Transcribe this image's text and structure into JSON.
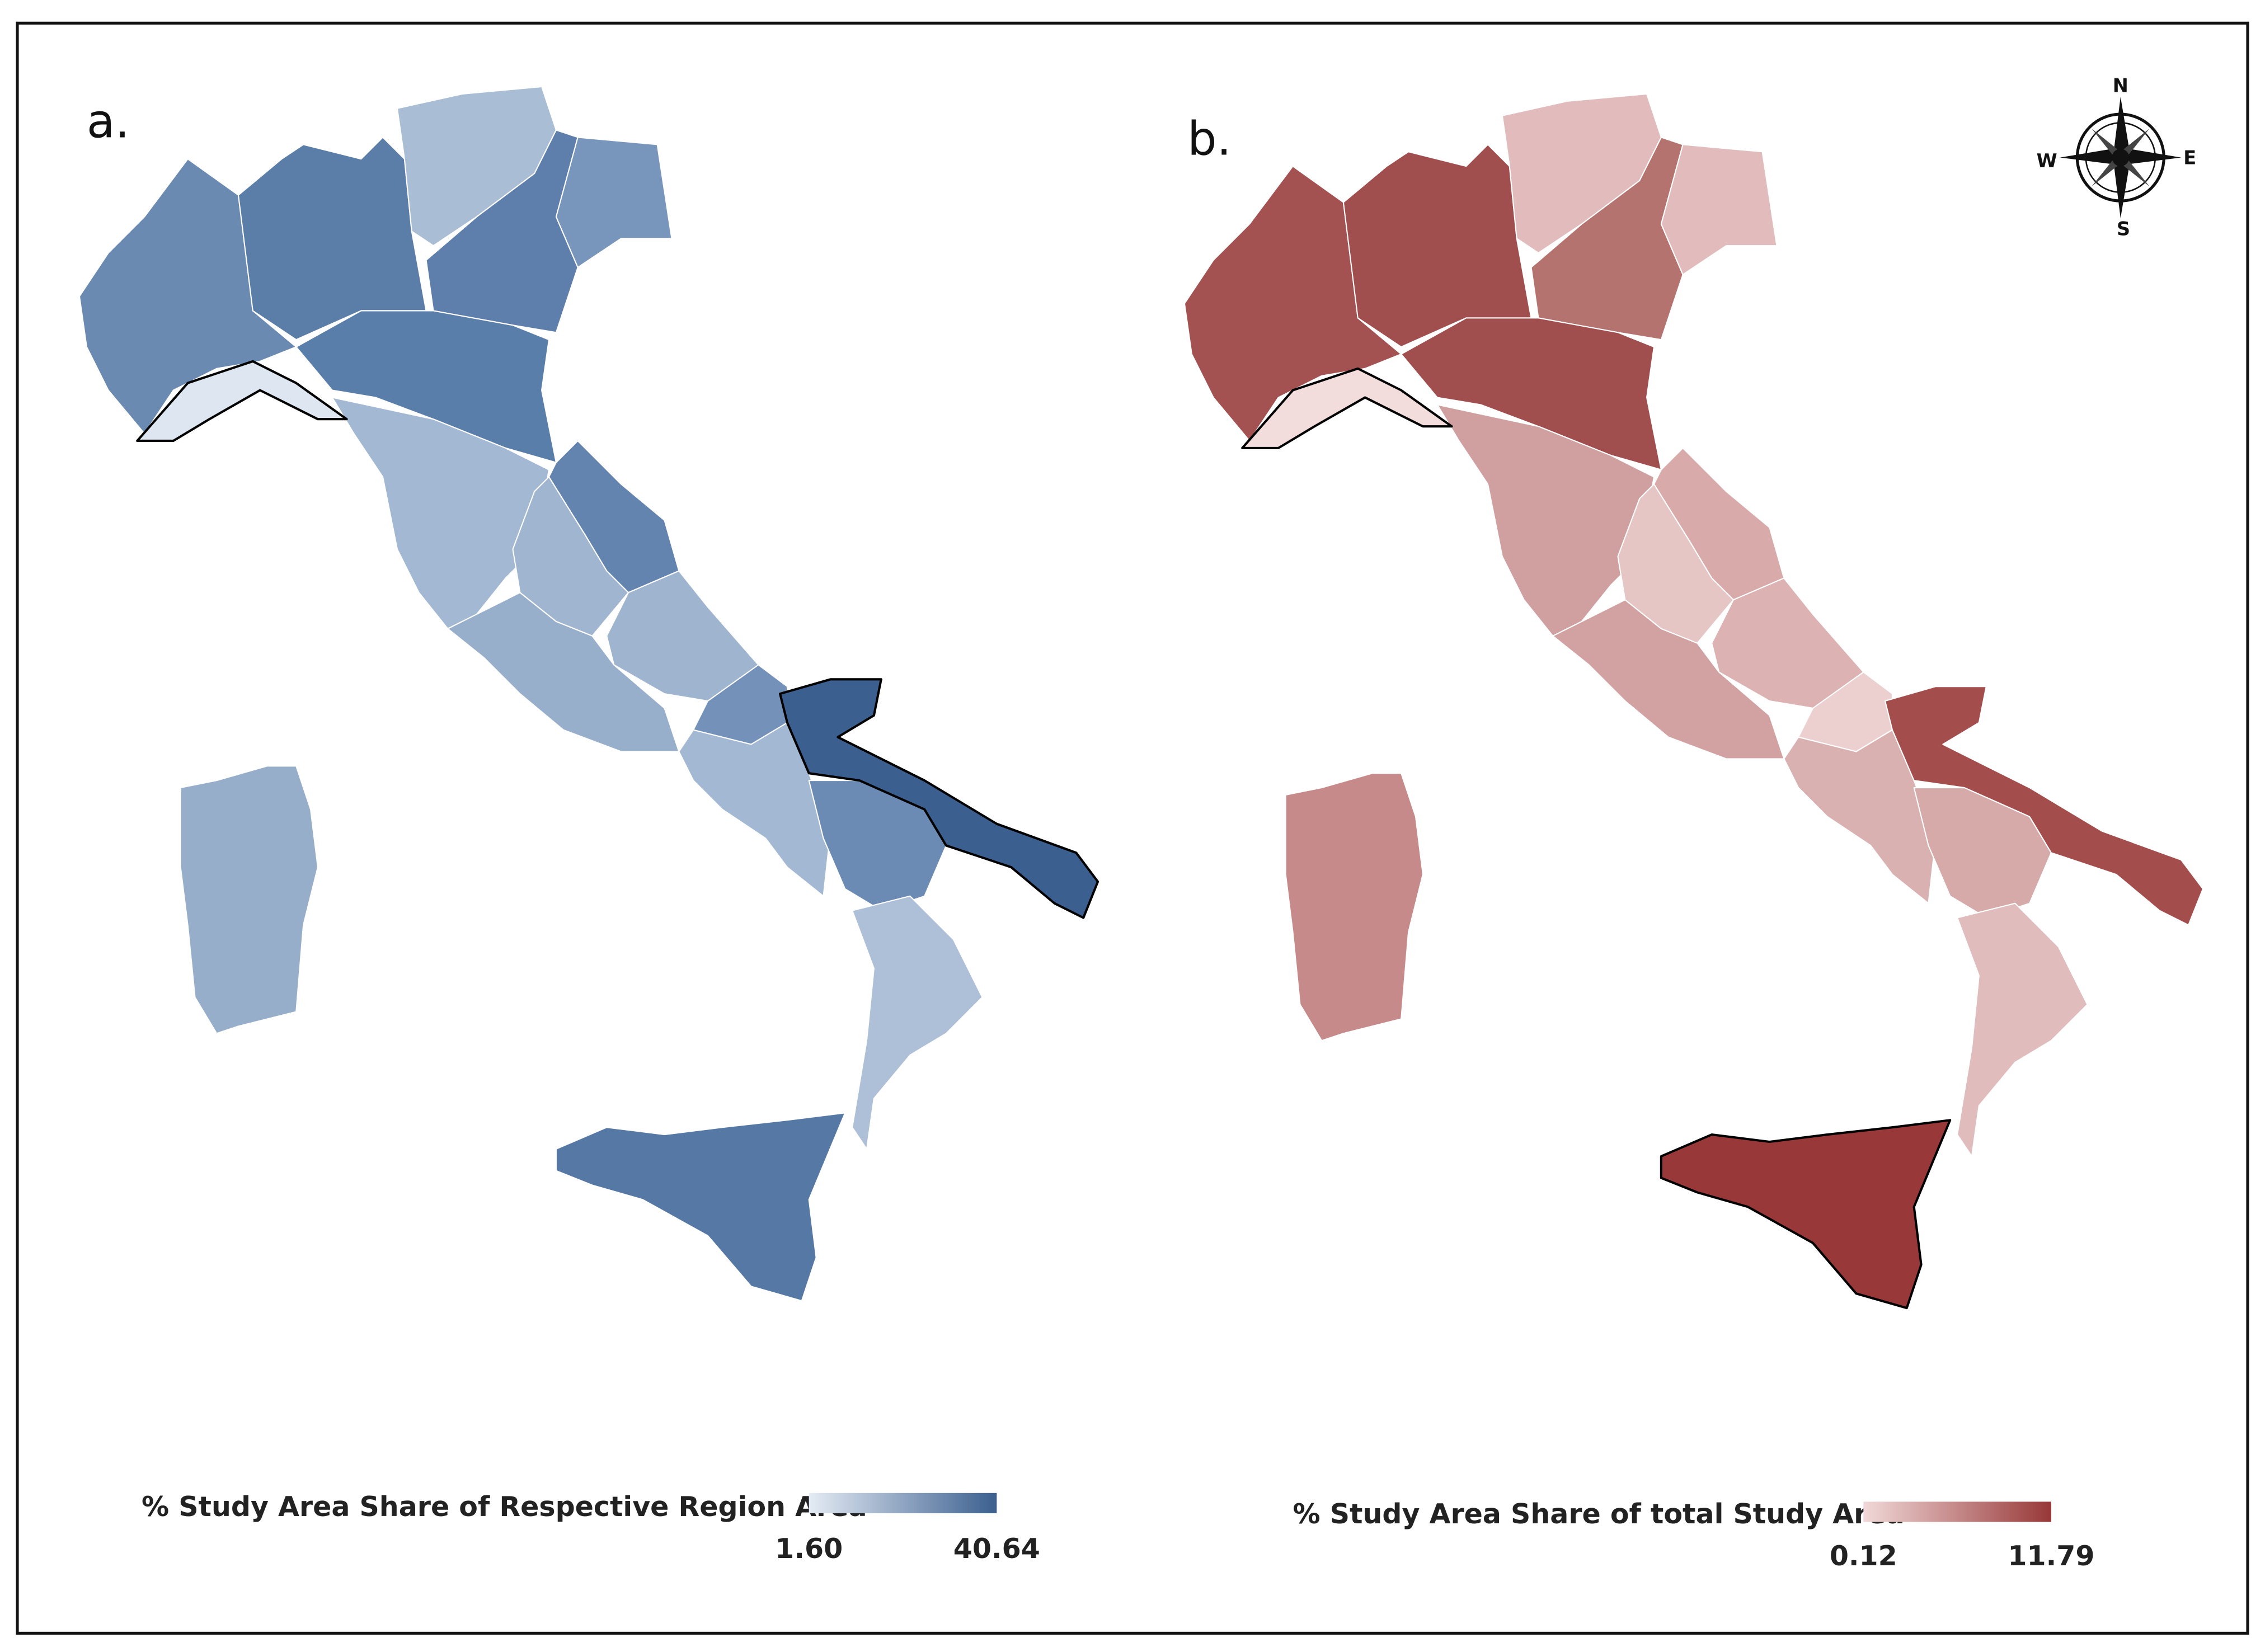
{
  "panels": [
    {
      "label": "a.",
      "legend": {
        "title": "% Study Area Share of Respective Region Area",
        "min": "1.60",
        "max": "40.64"
      }
    },
    {
      "label": "b.",
      "legend": {
        "title": "% Study Area Share of total Study Area",
        "min": "0.12",
        "max": "11.79"
      }
    }
  ],
  "compass": {
    "north": "N",
    "south": "S",
    "east": "E",
    "west": "W"
  }
}
